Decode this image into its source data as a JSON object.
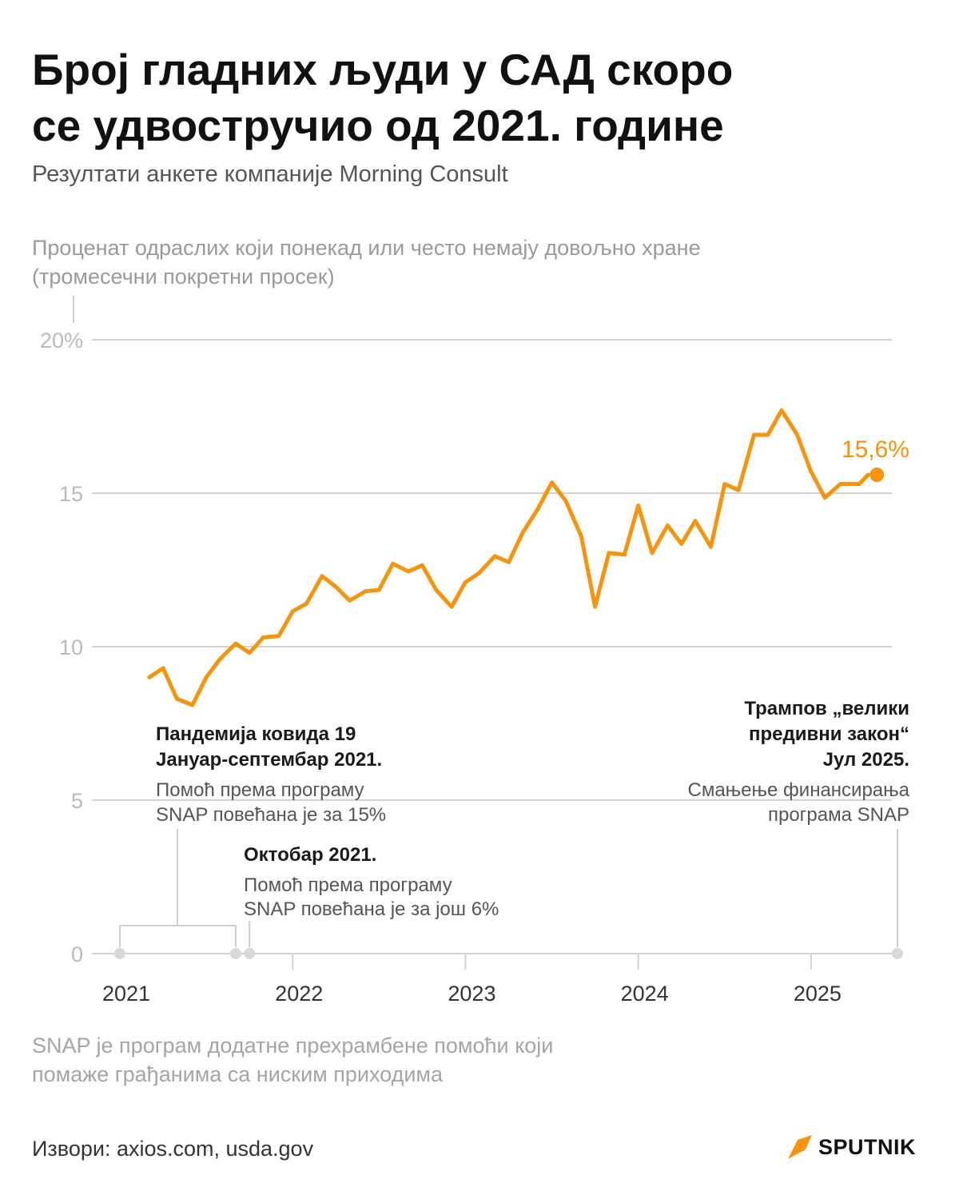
{
  "title_lines": [
    "Број гладних људи у САД скоро",
    "се удвостручио од 2021. године"
  ],
  "subtitle": "Резултати анкете компаније Morning Consult",
  "y_axis_label": [
    "Проценат одраслих који понекад или често немају довољно хране",
    "(тромесечни покретни просек)"
  ],
  "footnote": [
    "SNAP је програм додатне прехрамбене помоћи који",
    "помаже грађанима са ниским приходима"
  ],
  "source": "Извори: axios.com, usda.gov",
  "brand": {
    "name": "SPUTNIK",
    "accent": "#f5940f"
  },
  "annotations": {
    "covid": {
      "title": [
        "Пандемија ковида 19",
        "Јануар-септембар 2021."
      ],
      "text": [
        "Помоћ према програму",
        "SNAP повећана је за 15%"
      ]
    },
    "october": {
      "title": "Октобар 2021.",
      "text": [
        "Помоћ према програму",
        "SNAP повећана је за још 6%"
      ]
    },
    "trump": {
      "title": [
        "Трампов „велики",
        "предивни закон“",
        "Јул 2025."
      ],
      "text": [
        "Смањење финансирања",
        "програма SNAP"
      ]
    }
  },
  "chart_data": {
    "type": "line",
    "title": "Број гладних људи у САД скоро се удвостручио од 2021. године",
    "ylabel": "Проценат одраслих који понекад или често немају довољно хране (тромесечни покретни просек)",
    "ylim": [
      0,
      20
    ],
    "yticks": [
      0,
      5,
      10,
      15,
      20
    ],
    "ytick_labels": [
      "0",
      "5",
      "10",
      "15",
      "20%"
    ],
    "xticks": [
      2021,
      2022,
      2023,
      2024,
      2025
    ],
    "xtick_labels": [
      "2021",
      "2022",
      "2023",
      "2024",
      "2025"
    ],
    "xlim": [
      2021.0,
      2025.5
    ],
    "color": "#f5940f",
    "last_label": "15,6%",
    "event_dates": [
      2021.0,
      2021.67,
      2021.75,
      2025.5
    ],
    "x": [
      2021.17,
      2021.25,
      2021.33,
      2021.42,
      2021.5,
      2021.58,
      2021.67,
      2021.75,
      2021.83,
      2021.92,
      2022.0,
      2022.08,
      2022.17,
      2022.25,
      2022.33,
      2022.42,
      2022.5,
      2022.58,
      2022.67,
      2022.75,
      2022.83,
      2022.92,
      2023.0,
      2023.08,
      2023.17,
      2023.25,
      2023.33,
      2023.42,
      2023.5,
      2023.58,
      2023.67,
      2023.75,
      2023.83,
      2023.92,
      2024.0,
      2024.08,
      2024.17,
      2024.25,
      2024.33,
      2024.42,
      2024.5,
      2024.58,
      2024.67,
      2024.75,
      2024.83,
      2024.92,
      2025.0,
      2025.08,
      2025.17,
      2025.25,
      2025.28,
      2025.33
    ],
    "values": [
      9.0,
      9.3,
      8.3,
      8.1,
      9.0,
      9.6,
      10.1,
      9.8,
      10.3,
      10.35,
      11.15,
      11.4,
      12.3,
      11.95,
      11.5,
      11.8,
      11.85,
      12.7,
      12.45,
      12.65,
      11.85,
      11.3,
      12.1,
      12.4,
      12.95,
      12.75,
      13.7,
      14.5,
      15.35,
      14.75,
      13.6,
      11.3,
      13.05,
      13.0,
      14.6,
      13.05,
      13.95,
      13.35,
      14.1,
      13.25,
      15.3,
      15.1,
      16.9,
      16.9,
      17.7,
      16.9,
      15.7,
      14.85,
      15.3,
      15.3,
      15.3,
      15.6
    ]
  }
}
